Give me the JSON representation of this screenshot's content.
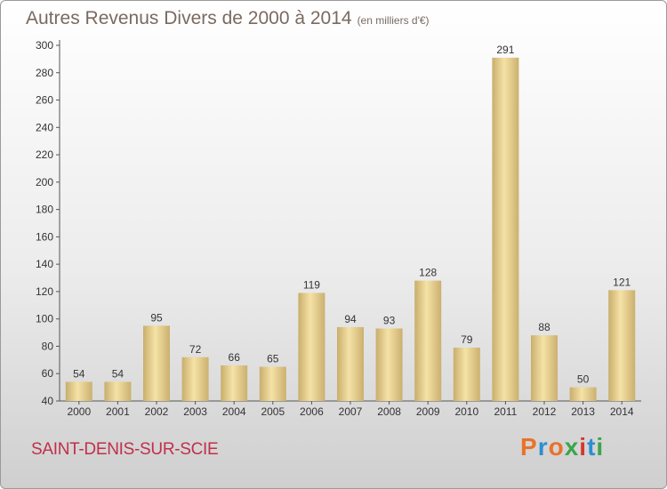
{
  "header": {
    "title": "Autres Revenus Divers de 2000 à 2014",
    "subtitle": "(en milliers d'€)"
  },
  "footer": {
    "commune": "SAINT-DENIS-SUR-SCIE",
    "logo": "Proxiti"
  },
  "colors": {
    "bar_light": "#f6e4a8",
    "bar_dark": "#c7ad6a",
    "commune_text": "#c0304a",
    "title_text": "#7a6a60"
  },
  "chart_data": {
    "type": "bar",
    "title": "Autres Revenus Divers de 2000 à 2014",
    "categories": [
      "2000",
      "2001",
      "2002",
      "2003",
      "2004",
      "2005",
      "2006",
      "2007",
      "2008",
      "2009",
      "2010",
      "2011",
      "2012",
      "2013",
      "2014"
    ],
    "values": [
      54,
      54,
      95,
      72,
      66,
      65,
      119,
      94,
      93,
      128,
      79,
      291,
      88,
      50,
      121
    ],
    "ylim": [
      40,
      300
    ],
    "yticks": [
      40,
      60,
      80,
      100,
      120,
      140,
      160,
      180,
      200,
      220,
      240,
      260,
      280,
      300
    ],
    "grid": false,
    "legend": "none"
  }
}
